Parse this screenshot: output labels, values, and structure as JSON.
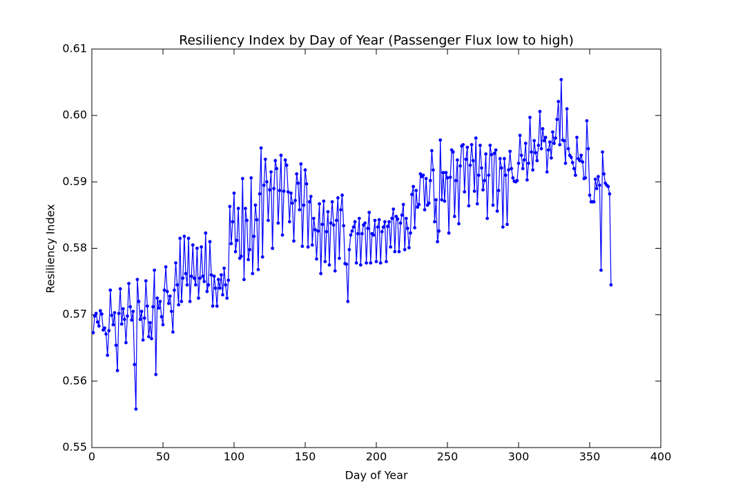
{
  "chart_data": {
    "type": "line",
    "title": "Resiliency Index by Day of Year (Passenger Flux low to high)",
    "xlabel": "Day of Year",
    "ylabel": "Resiliency Index",
    "color": "#0000ff",
    "xlim": [
      0,
      400
    ],
    "xticks": [
      0,
      50,
      100,
      150,
      200,
      250,
      300,
      350,
      400
    ],
    "ylim": [
      0.55,
      0.61
    ],
    "yticks": [
      0.55,
      0.56,
      0.57,
      0.58,
      0.59,
      {
        "value": 0.6,
        "label": "0.60"
      },
      0.61
    ],
    "x": [
      1,
      2,
      3,
      4,
      5,
      6,
      7,
      8,
      9,
      10,
      11,
      12,
      13,
      14,
      15,
      16,
      17,
      18,
      19,
      20,
      21,
      22,
      23,
      24,
      25,
      26,
      27,
      28,
      29,
      30,
      31,
      32,
      33,
      34,
      35,
      36,
      37,
      38,
      39,
      40,
      41,
      42,
      43,
      44,
      45,
      46,
      47,
      48,
      49,
      50,
      51,
      52,
      53,
      54,
      55,
      56,
      57,
      58,
      59,
      60,
      61,
      62,
      63,
      64,
      65,
      66,
      67,
      68,
      69,
      70,
      71,
      72,
      73,
      74,
      75,
      76,
      77,
      78,
      79,
      80,
      81,
      82,
      83,
      84,
      85,
      86,
      87,
      88,
      89,
      90,
      91,
      92,
      93,
      94,
      95,
      96,
      97,
      98,
      99,
      100,
      101,
      102,
      103,
      104,
      105,
      106,
      107,
      108,
      109,
      110,
      111,
      112,
      113,
      114,
      115,
      116,
      117,
      118,
      119,
      120,
      121,
      122,
      123,
      124,
      125,
      126,
      127,
      128,
      129,
      130,
      131,
      132,
      133,
      134,
      135,
      136,
      137,
      138,
      139,
      140,
      141,
      142,
      143,
      144,
      145,
      146,
      147,
      148,
      149,
      150,
      151,
      152,
      153,
      154,
      155,
      156,
      157,
      158,
      159,
      160,
      161,
      162,
      163,
      164,
      165,
      166,
      167,
      168,
      169,
      170,
      171,
      172,
      173,
      174,
      175,
      176,
      177,
      178,
      179,
      180,
      181,
      182,
      183,
      184,
      185,
      186,
      187,
      188,
      189,
      190,
      191,
      192,
      193,
      194,
      195,
      196,
      197,
      198,
      199,
      200,
      201,
      202,
      203,
      204,
      205,
      206,
      207,
      208,
      209,
      210,
      211,
      212,
      213,
      214,
      215,
      216,
      217,
      218,
      219,
      220,
      221,
      222,
      223,
      224,
      225,
      226,
      227,
      228,
      229,
      230,
      231,
      232,
      233,
      234,
      235,
      236,
      237,
      238,
      239,
      240,
      241,
      242,
      243,
      244,
      245,
      246,
      247,
      248,
      249,
      250,
      251,
      252,
      253,
      254,
      255,
      256,
      257,
      258,
      259,
      260,
      261,
      262,
      263,
      264,
      265,
      266,
      267,
      268,
      269,
      270,
      271,
      272,
      273,
      274,
      275,
      276,
      277,
      278,
      279,
      280,
      281,
      282,
      283,
      284,
      285,
      286,
      287,
      288,
      289,
      290,
      291,
      292,
      293,
      294,
      295,
      296,
      297,
      298,
      299,
      300,
      301,
      302,
      303,
      304,
      305,
      306,
      307,
      308,
      309,
      310,
      311,
      312,
      313,
      314,
      315,
      316,
      317,
      318,
      319,
      320,
      321,
      322,
      323,
      324,
      325,
      326,
      327,
      328,
      329,
      330,
      331,
      332,
      333,
      334,
      335,
      336,
      337,
      338,
      339,
      340,
      341,
      342,
      343,
      344,
      345,
      346,
      347,
      348,
      349,
      350,
      351,
      352,
      353,
      354,
      355,
      356,
      357,
      358,
      359,
      360,
      361,
      362,
      363,
      364,
      365
    ],
    "values": [
      0.5673,
      0.5698,
      0.5702,
      0.5689,
      0.5683,
      0.5706,
      0.5701,
      0.5677,
      0.568,
      0.5671,
      0.5639,
      0.5676,
      0.5737,
      0.5699,
      0.5685,
      0.5703,
      0.5654,
      0.5616,
      0.5702,
      0.5739,
      0.5686,
      0.5709,
      0.5693,
      0.5658,
      0.5698,
      0.5747,
      0.5712,
      0.5692,
      0.5705,
      0.5625,
      0.5558,
      0.5753,
      0.572,
      0.5693,
      0.5705,
      0.5662,
      0.5695,
      0.5751,
      0.5713,
      0.5667,
      0.5688,
      0.5664,
      0.5712,
      0.5767,
      0.561,
      0.5725,
      0.571,
      0.572,
      0.5697,
      0.5685,
      0.5737,
      0.5772,
      0.5735,
      0.5717,
      0.5728,
      0.5705,
      0.5674,
      0.5737,
      0.5778,
      0.5745,
      0.5715,
      0.5815,
      0.572,
      0.5755,
      0.5818,
      0.5762,
      0.5745,
      0.5815,
      0.572,
      0.5758,
      0.5805,
      0.5755,
      0.5745,
      0.58,
      0.5725,
      0.5755,
      0.5802,
      0.5758,
      0.575,
      0.5823,
      0.5735,
      0.5745,
      0.581,
      0.576,
      0.5713,
      0.5758,
      0.574,
      0.5713,
      0.5753,
      0.574,
      0.576,
      0.573,
      0.577,
      0.5745,
      0.5725,
      0.5752,
      0.5863,
      0.5807,
      0.584,
      0.5883,
      0.5795,
      0.5812,
      0.586,
      0.5785,
      0.5788,
      0.5905,
      0.5753,
      0.586,
      0.5842,
      0.5783,
      0.5798,
      0.5906,
      0.5762,
      0.5818,
      0.5865,
      0.5843,
      0.5768,
      0.5882,
      0.5951,
      0.5787,
      0.5895,
      0.5934,
      0.59,
      0.5842,
      0.5888,
      0.5915,
      0.58,
      0.589,
      0.5932,
      0.592,
      0.5838,
      0.5887,
      0.594,
      0.582,
      0.5886,
      0.5933,
      0.5925,
      0.5885,
      0.584,
      0.5883,
      0.5868,
      0.5811,
      0.5872,
      0.5912,
      0.5898,
      0.5858,
      0.5927,
      0.5803,
      0.5865,
      0.5918,
      0.5897,
      0.5802,
      0.587,
      0.5878,
      0.5805,
      0.5845,
      0.5828,
      0.5784,
      0.5826,
      0.5867,
      0.5762,
      0.5836,
      0.5871,
      0.578,
      0.5825,
      0.5855,
      0.5775,
      0.5838,
      0.587,
      0.5835,
      0.5766,
      0.5842,
      0.5876,
      0.5785,
      0.5858,
      0.588,
      0.5834,
      0.5777,
      0.5776,
      0.572,
      0.5798,
      0.582,
      0.5826,
      0.5832,
      0.584,
      0.5778,
      0.5822,
      0.5845,
      0.5775,
      0.5822,
      0.5835,
      0.5838,
      0.5778,
      0.583,
      0.5854,
      0.5778,
      0.5822,
      0.582,
      0.5842,
      0.578,
      0.5832,
      0.5843,
      0.5778,
      0.5825,
      0.5832,
      0.584,
      0.578,
      0.5833,
      0.584,
      0.5802,
      0.5845,
      0.5859,
      0.5795,
      0.5848,
      0.5844,
      0.5795,
      0.5838,
      0.585,
      0.5866,
      0.5798,
      0.5845,
      0.583,
      0.5801,
      0.5823,
      0.5881,
      0.5893,
      0.5831,
      0.5887,
      0.5862,
      0.5866,
      0.5912,
      0.5908,
      0.591,
      0.5858,
      0.5905,
      0.5865,
      0.5868,
      0.5902,
      0.5947,
      0.5918,
      0.584,
      0.5873,
      0.581,
      0.5826,
      0.5963,
      0.5873,
      0.5914,
      0.5871,
      0.5914,
      0.5906,
      0.5823,
      0.5907,
      0.5948,
      0.5945,
      0.5848,
      0.5902,
      0.5933,
      0.5837,
      0.5924,
      0.5954,
      0.5956,
      0.5885,
      0.5934,
      0.5952,
      0.5864,
      0.5925,
      0.5956,
      0.5932,
      0.5886,
      0.5966,
      0.5867,
      0.591,
      0.5955,
      0.5921,
      0.5888,
      0.5902,
      0.5942,
      0.5845,
      0.591,
      0.5955,
      0.5941,
      0.5865,
      0.5943,
      0.5948,
      0.5856,
      0.5887,
      0.5935,
      0.5921,
      0.5832,
      0.5935,
      0.591,
      0.5836,
      0.5918,
      0.5946,
      0.592,
      0.5906,
      0.5901,
      0.59,
      0.5902,
      0.5928,
      0.597,
      0.594,
      0.592,
      0.5933,
      0.5958,
      0.5903,
      0.5928,
      0.5997,
      0.5945,
      0.5918,
      0.5962,
      0.5944,
      0.5932,
      0.5955,
      0.6006,
      0.595,
      0.598,
      0.5962,
      0.5967,
      0.5915,
      0.5948,
      0.596,
      0.5936,
      0.5975,
      0.5958,
      0.5966,
      0.5994,
      0.6021,
      0.5956,
      0.6054,
      0.5963,
      0.5962,
      0.5928,
      0.601,
      0.595,
      0.594,
      0.5937,
      0.5929,
      0.592,
      0.591,
      0.5967,
      0.5935,
      0.5932,
      0.594,
      0.593,
      0.5905,
      0.5906,
      0.5992,
      0.595,
      0.588,
      0.587,
      0.587,
      0.587,
      0.5904,
      0.589,
      0.5908,
      0.5895,
      0.5767,
      0.5945,
      0.5912,
      0.5898,
      0.5895,
      0.5893,
      0.5882,
      0.5745
    ]
  }
}
